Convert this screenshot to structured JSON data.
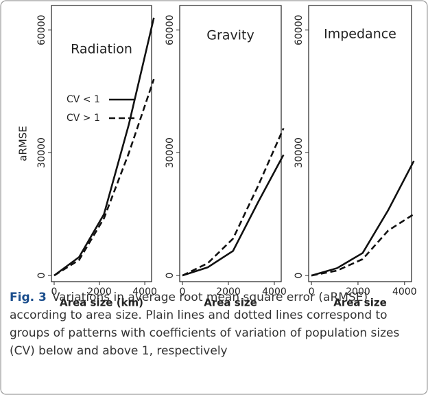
{
  "chart_data": [
    {
      "type": "line",
      "title": "Radiation",
      "x_label": "Area size (km)",
      "y_label": "aRMSE",
      "x": [
        0,
        1100,
        2200,
        3300,
        4400
      ],
      "series": [
        {
          "name": "CV < 1",
          "color": "#111111",
          "dashed": false,
          "values": [
            0,
            4500,
            15000,
            37000,
            63000
          ]
        },
        {
          "name": "CV > 1",
          "color": "#111111",
          "dashed": true,
          "values": [
            0,
            3800,
            14000,
            30000,
            48000
          ]
        }
      ],
      "legend": true,
      "xlim": [
        -120,
        4300
      ],
      "ylim": [
        -1500,
        66000
      ],
      "xticks": [
        0,
        2000,
        4000
      ],
      "yticks": [
        0,
        30000,
        60000
      ]
    },
    {
      "type": "line",
      "title": "Gravity",
      "x_label": "Area size",
      "x": [
        0,
        1100,
        2200,
        3300,
        4400
      ],
      "series": [
        {
          "color": "#111111",
          "dashed": false,
          "values": [
            0,
            2000,
            6000,
            18000,
            29500
          ]
        },
        {
          "color": "#111111",
          "dashed": true,
          "values": [
            0,
            3000,
            9000,
            22000,
            36000
          ]
        }
      ],
      "legend": false,
      "xlim": [
        -120,
        4300
      ],
      "ylim": [
        -1500,
        66000
      ],
      "xticks": [
        0,
        2000,
        4000
      ],
      "yticks": [
        0,
        30000,
        60000
      ]
    },
    {
      "type": "line",
      "title": "Impedance",
      "x_label": "Area size",
      "x": [
        0,
        1100,
        2200,
        3300,
        4400
      ],
      "series": [
        {
          "color": "#111111",
          "dashed": false,
          "values": [
            0,
            1800,
            5500,
            16000,
            28000
          ]
        },
        {
          "color": "#111111",
          "dashed": true,
          "values": [
            0,
            1200,
            4000,
            11000,
            15000
          ]
        }
      ],
      "legend": false,
      "xlim": [
        -120,
        4300
      ],
      "ylim": [
        -1500,
        66000
      ],
      "xticks": [
        0,
        2000,
        4000
      ],
      "yticks": [
        0,
        30000,
        60000
      ]
    }
  ],
  "caption": {
    "label": "Fig. 3",
    "text": "Variations in average root mean square error (aRMSE) according to area size. Plain lines and dotted lines correspond to groups of patterns with coefficients of variation of population sizes (CV) below and above 1, respectively"
  }
}
